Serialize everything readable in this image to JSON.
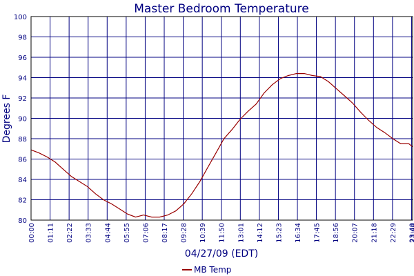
{
  "chart_data": {
    "type": "line",
    "title": "Master Bedroom Temperature",
    "xlabel": "04/27/09 (EDT)",
    "ylabel": "Degrees F",
    "ylim": [
      80,
      100
    ],
    "y_ticks": [
      80,
      82,
      84,
      86,
      88,
      90,
      92,
      94,
      96,
      98,
      100
    ],
    "x_ticks": [
      "00:00",
      "01:11",
      "02:22",
      "03:33",
      "04:44",
      "05:55",
      "07:06",
      "08:17",
      "09:28",
      "10:39",
      "11:50",
      "13:01",
      "14:12",
      "15:23",
      "16:34",
      "17:45",
      "18:56",
      "20:07",
      "21:18",
      "22:29",
      "23:40",
      "23:44"
    ],
    "xlim_minutes": [
      0,
      1424
    ],
    "grid": true,
    "legend": {
      "position": "bottom",
      "entries": [
        "MB Temp"
      ]
    },
    "colors": {
      "series": "#990000",
      "grid": "#000080",
      "text": "#000080",
      "axis": "#000000"
    },
    "series": [
      {
        "name": "MB Temp",
        "x": [
          "00:00",
          "00:30",
          "01:00",
          "01:30",
          "02:00",
          "02:30",
          "03:00",
          "03:30",
          "04:00",
          "04:30",
          "05:00",
          "05:30",
          "06:00",
          "06:30",
          "07:00",
          "07:30",
          "08:00",
          "08:30",
          "09:00",
          "09:30",
          "10:00",
          "10:30",
          "11:00",
          "11:30",
          "12:00",
          "12:30",
          "13:00",
          "13:30",
          "14:00",
          "14:30",
          "15:00",
          "15:30",
          "16:00",
          "16:30",
          "17:00",
          "17:30",
          "18:00",
          "18:30",
          "19:00",
          "19:30",
          "20:00",
          "20:30",
          "21:00",
          "21:30",
          "22:00",
          "22:30",
          "23:00",
          "23:30",
          "23:44"
        ],
        "values": [
          86.9,
          86.6,
          86.2,
          85.7,
          85.0,
          84.3,
          83.8,
          83.3,
          82.6,
          82.0,
          81.6,
          81.1,
          80.6,
          80.3,
          80.5,
          80.3,
          80.3,
          80.5,
          80.9,
          81.6,
          82.6,
          83.8,
          85.2,
          86.6,
          88.0,
          88.9,
          89.9,
          90.7,
          91.4,
          92.5,
          93.3,
          93.9,
          94.2,
          94.4,
          94.4,
          94.2,
          94.1,
          93.6,
          92.9,
          92.2,
          91.5,
          90.6,
          89.8,
          89.1,
          88.6,
          88.0,
          87.5,
          87.5,
          87.2
        ]
      }
    ]
  }
}
